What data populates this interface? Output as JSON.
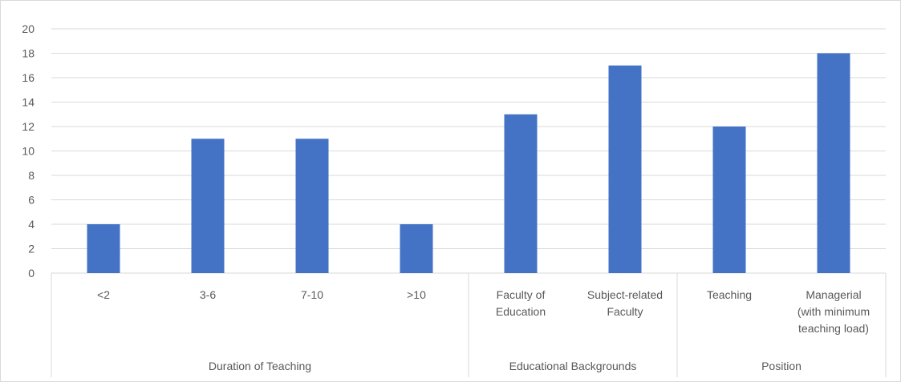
{
  "chart_data": {
    "type": "bar",
    "title": "",
    "xlabel": "",
    "ylabel": "",
    "ylim": [
      0,
      20
    ],
    "ytick_step": 2,
    "yticks": [
      "0",
      "2",
      "4",
      "6",
      "8",
      "10",
      "12",
      "14",
      "16",
      "18",
      "20"
    ],
    "grid": true,
    "legend": "none",
    "bar_color": "#4472C4",
    "categories": [
      {
        "label_lines": [
          "<2"
        ],
        "value": 4
      },
      {
        "label_lines": [
          "3-6"
        ],
        "value": 11
      },
      {
        "label_lines": [
          "7-10"
        ],
        "value": 11
      },
      {
        "label_lines": [
          ">10"
        ],
        "value": 4
      },
      {
        "label_lines": [
          "Faculty of",
          "Education"
        ],
        "value": 13
      },
      {
        "label_lines": [
          "Subject-related",
          "Faculty"
        ],
        "value": 17
      },
      {
        "label_lines": [
          "Teaching"
        ],
        "value": 12
      },
      {
        "label_lines": [
          "Managerial",
          "(with minimum",
          "teaching load)"
        ],
        "value": 18
      }
    ],
    "groups": [
      {
        "label": "Duration of Teaching",
        "count": 4
      },
      {
        "label": "Educational Backgrounds",
        "count": 2
      },
      {
        "label": "Position",
        "count": 2
      }
    ]
  }
}
